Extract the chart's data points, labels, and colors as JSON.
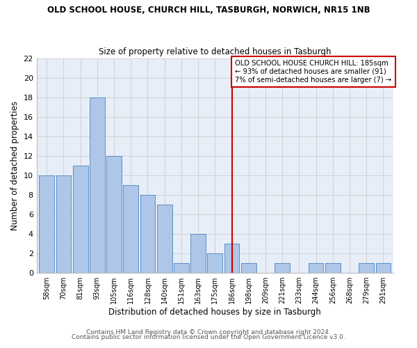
{
  "title": "OLD SCHOOL HOUSE, CHURCH HILL, TASBURGH, NORWICH, NR15 1NB",
  "subtitle": "Size of property relative to detached houses in Tasburgh",
  "xlabel": "Distribution of detached houses by size in Tasburgh",
  "ylabel": "Number of detached properties",
  "categories": [
    "58sqm",
    "70sqm",
    "81sqm",
    "93sqm",
    "105sqm",
    "116sqm",
    "128sqm",
    "140sqm",
    "151sqm",
    "163sqm",
    "175sqm",
    "186sqm",
    "198sqm",
    "209sqm",
    "221sqm",
    "233sqm",
    "244sqm",
    "256sqm",
    "268sqm",
    "279sqm",
    "291sqm"
  ],
  "values": [
    10,
    10,
    11,
    18,
    12,
    9,
    8,
    7,
    1,
    4,
    2,
    3,
    1,
    0,
    1,
    0,
    1,
    1,
    0,
    1,
    1
  ],
  "bar_color": "#aec6e8",
  "bar_edge_color": "#5a8fc4",
  "highlight_index": 11,
  "highlight_line_color": "#cc0000",
  "annotation_text": "OLD SCHOOL HOUSE CHURCH HILL: 185sqm\n← 93% of detached houses are smaller (91)\n7% of semi-detached houses are larger (7) →",
  "annotation_box_edge_color": "#cc0000",
  "ylim": [
    0,
    22
  ],
  "yticks": [
    0,
    2,
    4,
    6,
    8,
    10,
    12,
    14,
    16,
    18,
    20,
    22
  ],
  "grid_color": "#cccccc",
  "bg_color": "#e8eef8",
  "fig_color": "#ffffff",
  "footer_line1": "Contains HM Land Registry data © Crown copyright and database right 2024.",
  "footer_line2": "Contains public sector information licensed under the Open Government Licence v3.0."
}
